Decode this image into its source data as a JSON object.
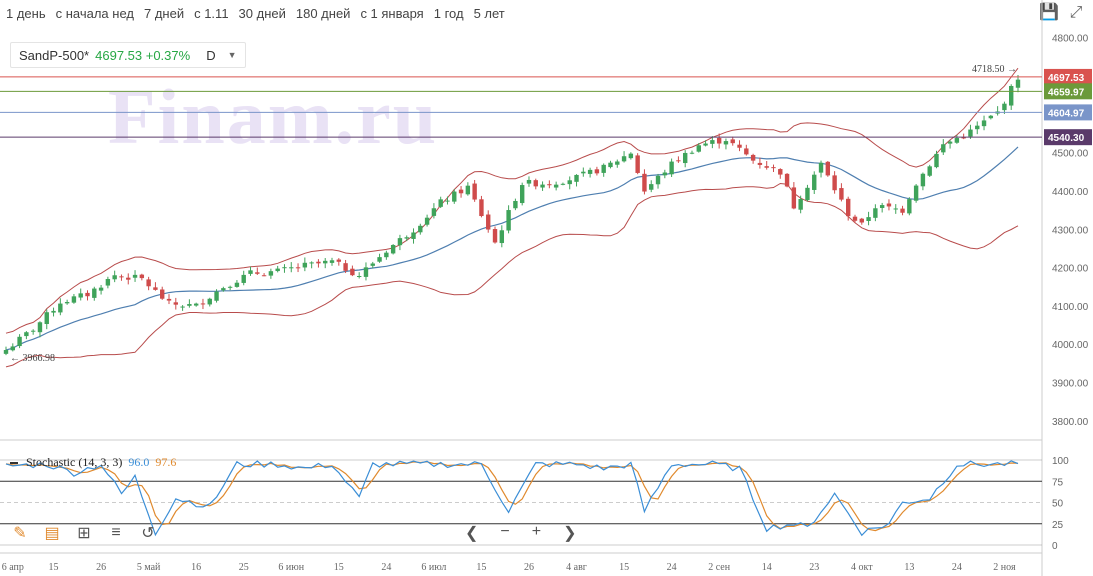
{
  "periods": [
    "1 день",
    "с начала нед",
    "7 дней",
    "с 1.11",
    "30 дней",
    "180 дней",
    "с 1 января",
    "1 год",
    "5 лет"
  ],
  "toolbar_icons": {
    "save": "save-icon",
    "close": "fullscreen-icon"
  },
  "legend": {
    "symbol": "SandP-500*",
    "value": "4697.53 +0.37%",
    "timeframe": "D"
  },
  "watermark": "Finam.ru",
  "stochastic": {
    "label": "Stochastic (14, 3, 3)",
    "k_value": "96.0",
    "d_value": "97.6",
    "k_color": "#3b8ed6",
    "d_color": "#e08a2e"
  },
  "colors": {
    "up": "#3fa35a",
    "down": "#cf4b4b",
    "ma": "#4f7fb0",
    "band": "#b84c4c"
  },
  "chart_data": {
    "type": "candlestick",
    "ylim": [
      3750,
      4820
    ],
    "yticks": [
      3800,
      3900,
      4000,
      4100,
      4200,
      4300,
      4400,
      4500,
      4600,
      4700,
      4800
    ],
    "ytick_labels": [
      "3800.00",
      "3900.00",
      "4000.00",
      "4100.00",
      "4200.00",
      "4300.00",
      "4400.00",
      "4500.00",
      "4600.00",
      "4700.00",
      "4800.00"
    ],
    "xticks": [
      {
        "label": "6 апр",
        "i": 1
      },
      {
        "label": "15",
        "i": 7
      },
      {
        "label": "26",
        "i": 14
      },
      {
        "label": "5 май",
        "i": 21
      },
      {
        "label": "16",
        "i": 28
      },
      {
        "label": "25",
        "i": 35
      },
      {
        "label": "6 июн",
        "i": 42
      },
      {
        "label": "15",
        "i": 49
      },
      {
        "label": "24",
        "i": 56
      },
      {
        "label": "6 июл",
        "i": 63
      },
      {
        "label": "15",
        "i": 70
      },
      {
        "label": "26",
        "i": 77
      },
      {
        "label": "4 авг",
        "i": 84
      },
      {
        "label": "15",
        "i": 91
      },
      {
        "label": "24",
        "i": 98
      },
      {
        "label": "2 сен",
        "i": 105
      },
      {
        "label": "14",
        "i": 112
      },
      {
        "label": "23",
        "i": 119
      },
      {
        "label": "4 окт",
        "i": 126
      },
      {
        "label": "13",
        "i": 133
      },
      {
        "label": "24",
        "i": 140
      },
      {
        "label": "2 ноя",
        "i": 147
      }
    ],
    "price_lines": [
      {
        "value": 4697.53,
        "label": "4697.53",
        "color": "#d9534f"
      },
      {
        "value": 4659.97,
        "label": "4659.97",
        "color": "#6b9a3a"
      },
      {
        "value": 4604.97,
        "label": "4604.97",
        "color": "#7a95c9"
      },
      {
        "value": 4540.3,
        "label": "4540.30",
        "color": "#5a3a6a"
      }
    ],
    "annotations": [
      {
        "text": "4718.50",
        "value": 4718.5
      },
      {
        "text": "3966.98",
        "value": 3966.98
      }
    ],
    "anchors": [
      [
        0,
        3985
      ],
      [
        4,
        4040
      ],
      [
        8,
        4110
      ],
      [
        12,
        4130
      ],
      [
        16,
        4180
      ],
      [
        20,
        4170
      ],
      [
        24,
        4105
      ],
      [
        28,
        4100
      ],
      [
        32,
        4150
      ],
      [
        36,
        4185
      ],
      [
        40,
        4190
      ],
      [
        44,
        4205
      ],
      [
        48,
        4215
      ],
      [
        52,
        4180
      ],
      [
        56,
        4245
      ],
      [
        60,
        4300
      ],
      [
        64,
        4370
      ],
      [
        68,
        4410
      ],
      [
        72,
        4265
      ],
      [
        76,
        4420
      ],
      [
        80,
        4420
      ],
      [
        84,
        4435
      ],
      [
        88,
        4460
      ],
      [
        92,
        4500
      ],
      [
        94,
        4400
      ],
      [
        98,
        4470
      ],
      [
        102,
        4520
      ],
      [
        106,
        4535
      ],
      [
        110,
        4480
      ],
      [
        114,
        4450
      ],
      [
        116,
        4360
      ],
      [
        120,
        4470
      ],
      [
        124,
        4340
      ],
      [
        126,
        4310
      ],
      [
        128,
        4360
      ],
      [
        132,
        4350
      ],
      [
        134,
        4420
      ],
      [
        138,
        4520
      ],
      [
        142,
        4555
      ],
      [
        146,
        4605
      ],
      [
        149,
        4697
      ]
    ],
    "stoch_anchors": [
      [
        0,
        93
      ],
      [
        6,
        95
      ],
      [
        10,
        85
      ],
      [
        14,
        95
      ],
      [
        17,
        60
      ],
      [
        19,
        80
      ],
      [
        22,
        15
      ],
      [
        25,
        55
      ],
      [
        30,
        45
      ],
      [
        34,
        95
      ],
      [
        40,
        95
      ],
      [
        44,
        90
      ],
      [
        48,
        95
      ],
      [
        52,
        55
      ],
      [
        54,
        95
      ],
      [
        60,
        95
      ],
      [
        64,
        95
      ],
      [
        70,
        95
      ],
      [
        74,
        40
      ],
      [
        78,
        95
      ],
      [
        84,
        95
      ],
      [
        88,
        90
      ],
      [
        92,
        95
      ],
      [
        94,
        40
      ],
      [
        98,
        95
      ],
      [
        104,
        95
      ],
      [
        108,
        90
      ],
      [
        112,
        20
      ],
      [
        116,
        25
      ],
      [
        118,
        20
      ],
      [
        122,
        60
      ],
      [
        126,
        15
      ],
      [
        130,
        25
      ],
      [
        132,
        50
      ],
      [
        136,
        55
      ],
      [
        140,
        95
      ],
      [
        146,
        95
      ],
      [
        149,
        96
      ]
    ],
    "stoch_levels": [
      0,
      25,
      50,
      75,
      100
    ]
  }
}
